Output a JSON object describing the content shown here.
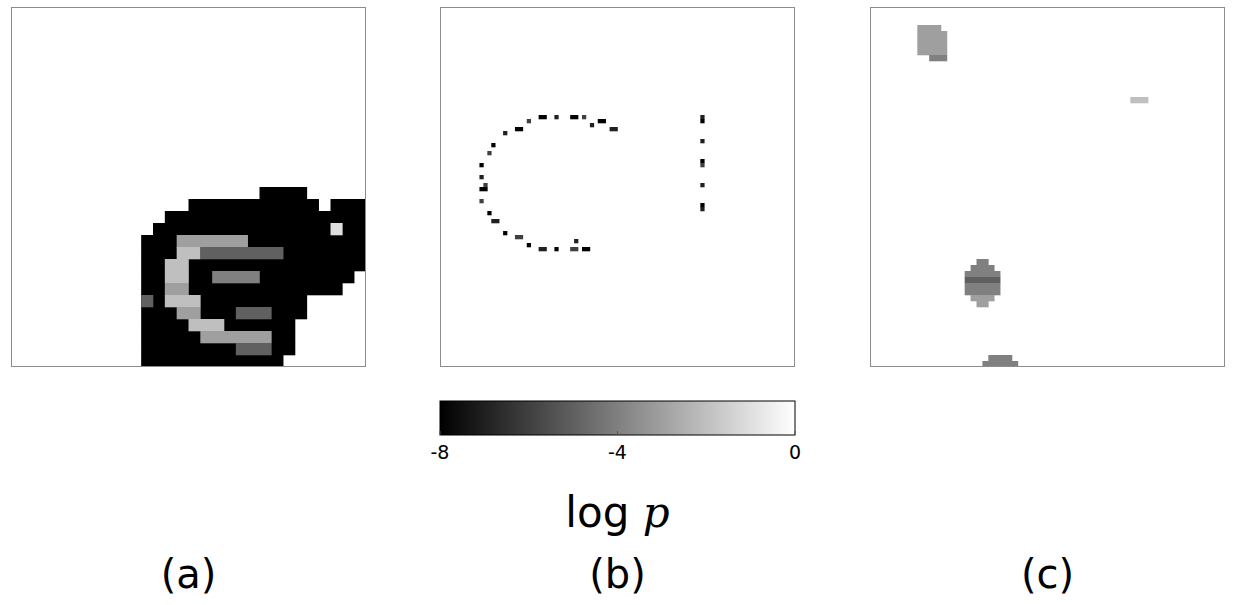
{
  "chart_data": {
    "type": "heatmap",
    "panels": [
      {
        "label": "(a)",
        "nx": 30,
        "ny": 30,
        "background": 0,
        "runs": [
          [
            15,
            21,
            24,
            -8
          ],
          [
            16,
            15,
            25,
            -8
          ],
          [
            16,
            27,
            29,
            -8
          ],
          [
            17,
            13,
            29,
            -8
          ],
          [
            18,
            12,
            29,
            -8
          ],
          [
            19,
            11,
            29,
            -8
          ],
          [
            20,
            11,
            29,
            -8
          ],
          [
            21,
            11,
            29,
            -8
          ],
          [
            22,
            11,
            28,
            -8
          ],
          [
            23,
            11,
            27,
            -8
          ],
          [
            24,
            11,
            24,
            -8
          ],
          [
            25,
            11,
            24,
            -8
          ],
          [
            26,
            11,
            23,
            -8
          ],
          [
            27,
            11,
            23,
            -8
          ],
          [
            28,
            11,
            23,
            -8
          ],
          [
            29,
            11,
            22,
            -8
          ],
          [
            19,
            14,
            19,
            -3
          ],
          [
            20,
            14,
            15,
            -2
          ],
          [
            20,
            16,
            22,
            -5
          ],
          [
            21,
            13,
            14,
            -2
          ],
          [
            22,
            13,
            14,
            -2
          ],
          [
            22,
            17,
            20,
            -4
          ],
          [
            23,
            13,
            14,
            -3
          ],
          [
            24,
            13,
            15,
            -2
          ],
          [
            25,
            14,
            15,
            -3
          ],
          [
            25,
            19,
            21,
            -5
          ],
          [
            26,
            15,
            17,
            -2
          ],
          [
            27,
            16,
            21,
            -3
          ],
          [
            28,
            19,
            21,
            -5
          ],
          [
            24,
            11,
            11,
            -5
          ],
          [
            18,
            27,
            27,
            -1
          ]
        ]
      },
      {
        "label": "(b)",
        "nx": 90,
        "ny": 90,
        "background": 0,
        "runs": [
          [
            30,
            43,
            44,
            -7
          ],
          [
            28,
            40,
            41,
            -8
          ],
          [
            27,
            36,
            36,
            -6
          ],
          [
            27,
            33,
            34,
            -8
          ],
          [
            27,
            29,
            29,
            -7
          ],
          [
            27,
            25,
            26,
            -8
          ],
          [
            28,
            22,
            22,
            -6
          ],
          [
            30,
            19,
            20,
            -8
          ],
          [
            31,
            16,
            16,
            -7
          ],
          [
            34,
            13,
            13,
            -8
          ],
          [
            36,
            12,
            12,
            -6
          ],
          [
            39,
            10,
            10,
            -8
          ],
          [
            42,
            10,
            10,
            -7
          ],
          [
            45,
            10,
            11,
            -8
          ],
          [
            48,
            10,
            10,
            -6
          ],
          [
            51,
            12,
            12,
            -8
          ],
          [
            53,
            13,
            14,
            -7
          ],
          [
            56,
            16,
            16,
            -8
          ],
          [
            57,
            19,
            20,
            -6
          ],
          [
            59,
            22,
            22,
            -8
          ],
          [
            60,
            25,
            26,
            -7
          ],
          [
            60,
            29,
            29,
            -8
          ],
          [
            60,
            33,
            34,
            -6
          ],
          [
            60,
            36,
            37,
            -8
          ],
          [
            29,
            38,
            38,
            -7
          ],
          [
            58,
            34,
            34,
            -7
          ],
          [
            44,
            11,
            11,
            -6
          ],
          [
            27,
            66,
            66,
            -7
          ],
          [
            28,
            66,
            66,
            -8
          ],
          [
            33,
            66,
            66,
            -7
          ],
          [
            38,
            66,
            66,
            -8
          ],
          [
            39,
            66,
            66,
            -6
          ],
          [
            44,
            66,
            66,
            -7
          ],
          [
            49,
            66,
            66,
            -8
          ],
          [
            50,
            66,
            66,
            -7
          ]
        ]
      },
      {
        "label": "(c)",
        "nx": 60,
        "ny": 60,
        "background": 0,
        "runs": [
          [
            3,
            8,
            11,
            -3
          ],
          [
            4,
            8,
            12,
            -3
          ],
          [
            5,
            8,
            12,
            -3
          ],
          [
            6,
            8,
            12,
            -3
          ],
          [
            7,
            8,
            12,
            -3
          ],
          [
            8,
            10,
            12,
            -4
          ],
          [
            15,
            44,
            46,
            -2
          ],
          [
            42,
            18,
            19,
            -4
          ],
          [
            43,
            17,
            20,
            -4
          ],
          [
            44,
            16,
            21,
            -4
          ],
          [
            45,
            16,
            21,
            -5
          ],
          [
            46,
            16,
            21,
            -4
          ],
          [
            47,
            16,
            21,
            -4
          ],
          [
            48,
            17,
            20,
            -3
          ],
          [
            49,
            18,
            19,
            -3
          ],
          [
            58,
            20,
            23,
            -4
          ],
          [
            59,
            19,
            24,
            -4
          ]
        ]
      }
    ],
    "colorbar": {
      "range": [
        -8,
        0
      ],
      "ticks": [
        -8,
        -4,
        0
      ],
      "label": "log p"
    }
  }
}
